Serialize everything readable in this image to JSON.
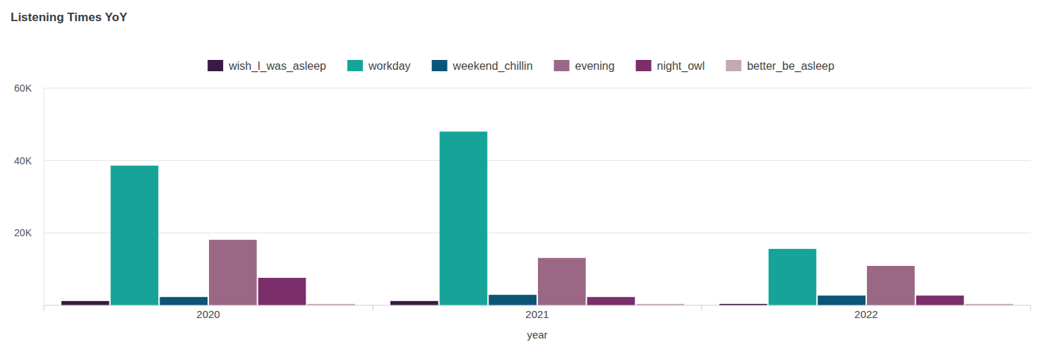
{
  "chart_data": {
    "type": "bar",
    "title": "Listening Times YoY",
    "x_label": "year",
    "categories": [
      "2020",
      "2021",
      "2022"
    ],
    "series": [
      {
        "name": "wish_l_was_asleep",
        "color": "#3a1a44",
        "values": [
          1200,
          1200,
          400
        ]
      },
      {
        "name": "workday",
        "color": "#17a498",
        "values": [
          38600,
          48000,
          15600
        ]
      },
      {
        "name": "weekend_chillin",
        "color": "#0b5577",
        "values": [
          2300,
          2900,
          2700
        ]
      },
      {
        "name": "evening",
        "color": "#9a6885",
        "values": [
          18100,
          13100,
          10900
        ]
      },
      {
        "name": "night_owl",
        "color": "#7b2e6a",
        "values": [
          7600,
          2300,
          2700
        ]
      },
      {
        "name": "better_be_asleep",
        "color": "#c1aab5",
        "values": [
          400,
          400,
          400
        ]
      }
    ],
    "ylim": [
      0,
      60000
    ],
    "yticks": [
      {
        "value": 20000,
        "label": "20K"
      },
      {
        "value": 40000,
        "label": "40K"
      },
      {
        "value": 60000,
        "label": "60K"
      }
    ],
    "grid": true,
    "legend": "top"
  }
}
